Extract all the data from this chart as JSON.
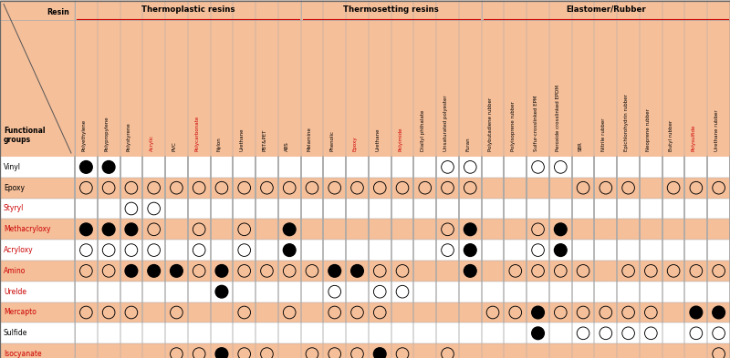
{
  "col_groups": [
    {
      "name": "Thermoplastic resins",
      "start": 0,
      "end": 10
    },
    {
      "name": "Thermosetting resins",
      "start": 10,
      "end": 18
    },
    {
      "name": "Elastomer/Rubber",
      "start": 18,
      "end": 29
    }
  ],
  "columns": [
    "Polyethylene",
    "Polypropylene",
    "Polystyrene",
    "Acrylic",
    "PVC",
    "Polycarbonate",
    "Nylon",
    "Urethane",
    "PBT&PET",
    "ABS",
    "Melamine",
    "Phenolic",
    "Epoxy",
    "Urethane",
    "Polyimide",
    "Diallyl phthalate",
    "Unsaturated polyester",
    "Furan",
    "Polybutadiene rubber",
    "Polyisoprene rubber",
    "Sulfur-crosslinked EPM",
    "Peroxide crosslinked EPDM",
    "SBR",
    "Nitrile rubber",
    "Epichlorohydrin rubber",
    "Neoprene rubber",
    "Butyl rubber",
    "Polysulfide",
    "Urethane rubber"
  ],
  "red_col_indices": [
    3,
    5,
    12,
    14,
    27
  ],
  "rows": [
    "Vinyl",
    "Epoxy",
    "Styryl",
    "Methacryloxy",
    "Acryloxy",
    "Amino",
    "Urelde",
    "Mercapto",
    "Sulfide",
    "Isocyanate"
  ],
  "red_row_indices": [
    2,
    3,
    4,
    5,
    6,
    7,
    9
  ],
  "data": [
    [
      "F",
      "F",
      "",
      "",
      "",
      "",
      "",
      "",
      "",
      "",
      "",
      "",
      "",
      "",
      "",
      "",
      "O",
      "O",
      "",
      "",
      "O",
      "O",
      "",
      "",
      "",
      "",
      "",
      "",
      ""
    ],
    [
      "O",
      "O",
      "O",
      "O",
      "O",
      "O",
      "O",
      "O",
      "O",
      "O",
      "O",
      "O",
      "O",
      "O",
      "O",
      "O",
      "O",
      "O",
      "",
      "",
      "",
      "",
      "O",
      "O",
      "O",
      "",
      "O",
      "O",
      "O"
    ],
    [
      "",
      "",
      "O",
      "O",
      "",
      "",
      "",
      "",
      "",
      "",
      "",
      "",
      "",
      "",
      "",
      "",
      "",
      "",
      "",
      "",
      "",
      "",
      "",
      "",
      "",
      "",
      "",
      "",
      ""
    ],
    [
      "F",
      "F",
      "F",
      "O",
      "",
      "O",
      "",
      "O",
      "",
      "F",
      "",
      "",
      "",
      "",
      "",
      "",
      "O",
      "F",
      "",
      "",
      "O",
      "F",
      "",
      "",
      "",
      "",
      "",
      "",
      ""
    ],
    [
      "O",
      "O",
      "O",
      "O",
      "",
      "O",
      "",
      "O",
      "",
      "F",
      "",
      "",
      "",
      "",
      "",
      "",
      "O",
      "F",
      "",
      "",
      "O",
      "F",
      "",
      "",
      "",
      "",
      "",
      "",
      ""
    ],
    [
      "O",
      "O",
      "F",
      "F",
      "F",
      "O",
      "F",
      "O",
      "O",
      "O",
      "O",
      "F",
      "F",
      "O",
      "O",
      "",
      "",
      "F",
      "",
      "O",
      "O",
      "O",
      "O",
      "",
      "O",
      "O",
      "O",
      "O",
      "O"
    ],
    [
      "",
      "",
      "",
      "",
      "",
      "",
      "F",
      "",
      "",
      "",
      "",
      "O",
      "",
      "O",
      "O",
      "",
      "",
      "",
      "",
      "",
      "",
      "",
      "",
      "",
      "",
      "",
      "",
      "",
      ""
    ],
    [
      "O",
      "O",
      "O",
      "",
      "O",
      "",
      "",
      "O",
      "",
      "O",
      "",
      "O",
      "O",
      "O",
      "",
      "",
      "",
      "",
      "O",
      "O",
      "F",
      "O",
      "O",
      "O",
      "O",
      "O",
      "",
      "F",
      "F"
    ],
    [
      "",
      "",
      "",
      "",
      "",
      "",
      "",
      "",
      "",
      "",
      "",
      "",
      "",
      "",
      "",
      "",
      "",
      "",
      "",
      "",
      "F",
      "",
      "O",
      "O",
      "O",
      "O",
      "",
      "O",
      "O"
    ],
    [
      "",
      "",
      "",
      "",
      "O",
      "O",
      "F",
      "O",
      "O",
      "",
      "O",
      "O",
      "O",
      "F",
      "O",
      "",
      "O",
      "",
      "",
      "",
      "",
      "",
      "",
      "",
      "",
      "",
      "",
      "",
      "O"
    ]
  ],
  "header_color": "#F5BF9A",
  "even_row_color": "#F5BF9A",
  "odd_row_color": "#FFFFFF",
  "border_color": "#AAAAAA",
  "group_underline_color": "#CC0000"
}
